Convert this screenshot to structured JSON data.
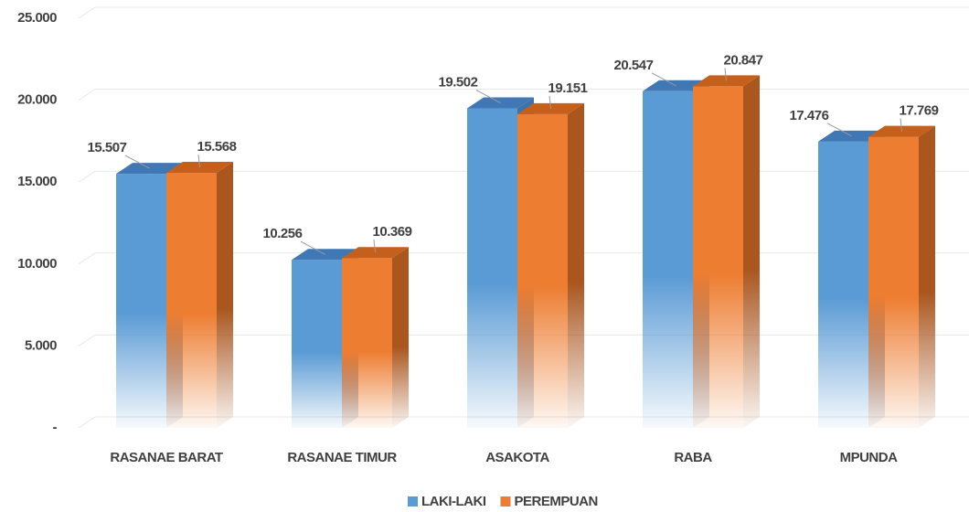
{
  "chart_data": {
    "type": "bar3d",
    "categories": [
      "RASANAE BARAT",
      "RASANAE TIMUR",
      "ASAKOTA",
      "RABA",
      "MPUNDA"
    ],
    "series": [
      {
        "name": "LAKI-LAKI",
        "color": "#5b9bd5",
        "values": [
          15507,
          10256,
          19502,
          20547,
          17476
        ],
        "value_labels": [
          "15.507",
          "10.256",
          "19.502",
          "20.547",
          "17.476"
        ]
      },
      {
        "name": "PEREMPUAN",
        "color": "#ed7d31",
        "values": [
          15568,
          10369,
          19151,
          20847,
          17769
        ],
        "value_labels": [
          "15.568",
          "10.369",
          "19.151",
          "20.847",
          "17.769"
        ]
      }
    ],
    "ylim": [
      0,
      25000
    ],
    "yticks": [
      {
        "value": 0,
        "label": "-"
      },
      {
        "value": 5000,
        "label": "5.000"
      },
      {
        "value": 10000,
        "label": "10.000"
      },
      {
        "value": 15000,
        "label": "15.000"
      },
      {
        "value": 20000,
        "label": "20.000"
      },
      {
        "value": 25000,
        "label": "25.000"
      }
    ],
    "grid": true,
    "legend": "bottom"
  }
}
